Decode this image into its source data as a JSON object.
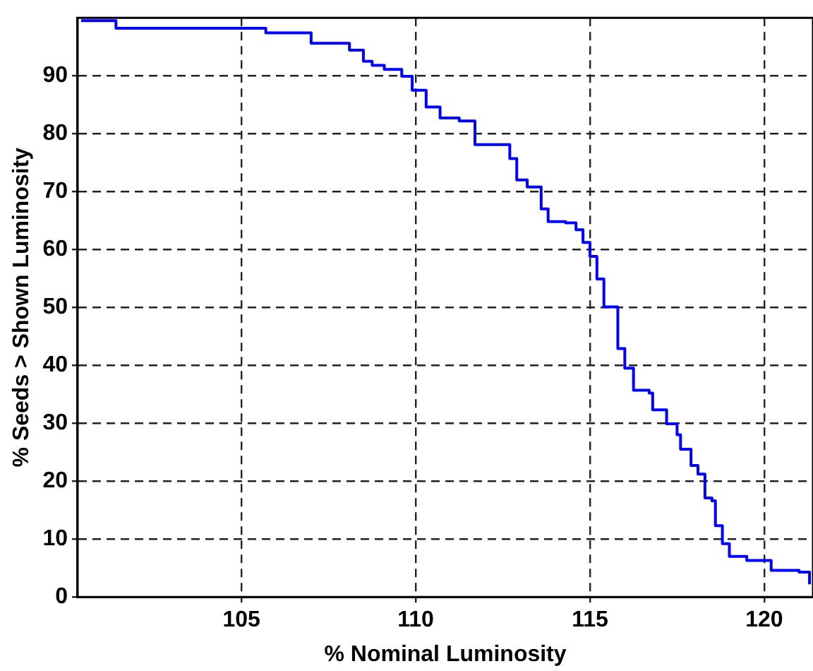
{
  "chart_data": {
    "type": "step",
    "xlabel": "% Nominal Luminosity",
    "ylabel": "% Seeds > Shown Luminosity",
    "xlim": [
      100.3,
      121.4
    ],
    "ylim": [
      0,
      100
    ],
    "xticks": [
      105,
      110,
      115,
      120
    ],
    "yticks": [
      0,
      10,
      20,
      30,
      40,
      50,
      60,
      70,
      80,
      90
    ],
    "grid": true,
    "legend": false,
    "marker": "none",
    "line_style": "solid",
    "series": [
      {
        "color": "#0000ff",
        "x": [
          100.4,
          101.4,
          105.7,
          107.0,
          108.1,
          108.5,
          108.75,
          109.1,
          109.6,
          109.9,
          110.3,
          110.7,
          111.25,
          111.7,
          112.5,
          112.7,
          112.9,
          113.2,
          113.6,
          113.8,
          114.3,
          114.6,
          114.8,
          115.0,
          115.2,
          115.4,
          115.8,
          116.0,
          116.25,
          116.7,
          116.8,
          117.2,
          117.5,
          117.6,
          117.9,
          118.1,
          118.3,
          118.5,
          118.6,
          118.8,
          119.0,
          119.5,
          119.9,
          120.2,
          121.0,
          121.3
        ],
        "values": [
          99.5,
          98.2,
          97.4,
          95.6,
          94.4,
          92.5,
          91.8,
          91.1,
          89.9,
          87.5,
          84.6,
          82.7,
          82.2,
          78.1,
          78.1,
          75.7,
          72,
          70.8,
          67,
          64.8,
          64.6,
          63.4,
          61.2,
          58.8,
          54.9,
          50.1,
          42.9,
          39.5,
          35.7,
          35.2,
          32.3,
          29.9,
          28,
          25.5,
          22.7,
          21.2,
          17.1,
          16.6,
          12.3,
          9.2,
          7,
          6.3,
          6.3,
          4.6,
          4.3,
          2.2
        ]
      }
    ]
  }
}
